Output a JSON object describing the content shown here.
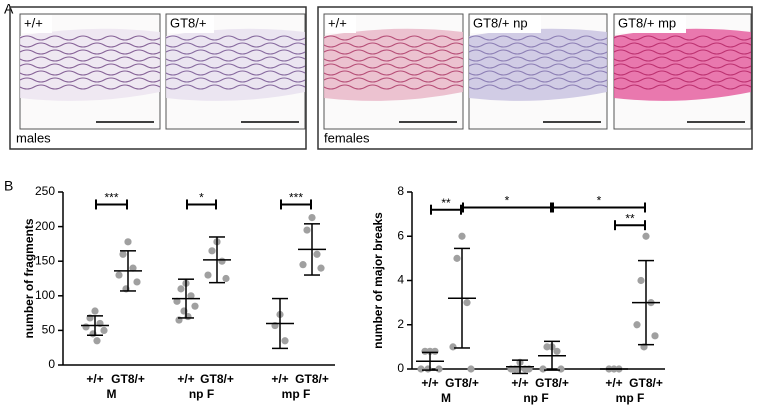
{
  "panel_labels": [
    "A",
    "B"
  ],
  "panel_a": [
    {
      "caption": "males",
      "images": [
        "+/+",
        "GT8/+"
      ]
    },
    {
      "caption": "females",
      "images": [
        "+/+",
        "GT8/+ np",
        "GT8/+ mp"
      ]
    }
  ],
  "chart_data": [
    {
      "type": "dot",
      "ylabel": "number of fragments",
      "categories": [
        "+/+",
        "GT8/+",
        "+/+",
        "GT8/+",
        "+/+",
        "GT8/+"
      ],
      "groups": [
        "M",
        "np F",
        "mp F"
      ],
      "points": [
        [
          78,
          68,
          60,
          55,
          50,
          45,
          35
        ],
        [
          178,
          160,
          140,
          130,
          120,
          110
        ],
        [
          118,
          110,
          100,
          92,
          85,
          78,
          70,
          65
        ],
        [
          178,
          165,
          150,
          130,
          125
        ],
        [
          73,
          57,
          35
        ],
        [
          213,
          195,
          160,
          145,
          140
        ]
      ],
      "means": [
        57,
        136,
        96,
        152,
        60,
        167
      ],
      "sd": [
        14,
        29,
        28,
        33,
        36,
        37
      ],
      "point_color": "#a0a0a0",
      "ylim": [
        0,
        250
      ],
      "yticks": [
        0,
        50,
        100,
        150,
        200,
        250
      ],
      "annotations": [
        {
          "label": "***",
          "pair": [
            0,
            1
          ],
          "y": 232
        },
        {
          "label": "*",
          "pair": [
            2,
            3
          ],
          "y": 232
        },
        {
          "label": "***",
          "pair": [
            4,
            5
          ],
          "y": 232
        }
      ]
    },
    {
      "type": "dot",
      "ylabel": "number of major breaks",
      "categories": [
        "+/+",
        "GT8/+",
        "+/+",
        "GT8/+",
        "+/+",
        "GT8/+"
      ],
      "groups": [
        "M",
        "np F",
        "mp F"
      ],
      "points": [
        [
          0.8,
          0.8,
          0.8,
          0,
          0,
          0
        ],
        [
          6,
          5,
          3,
          1,
          0
        ],
        [
          0.3,
          0,
          0,
          0,
          0,
          0
        ],
        [
          1,
          1,
          0.8,
          0,
          0
        ],
        [
          0,
          0,
          0
        ],
        [
          6,
          4,
          3,
          2,
          1.5,
          1
        ]
      ],
      "means": [
        0.35,
        3.2,
        0.1,
        0.6,
        0,
        3
      ],
      "sd": [
        0.4,
        2.25,
        0.3,
        0.65,
        0,
        1.9
      ],
      "point_color": "#a0a0a0",
      "ylim": [
        0,
        8
      ],
      "yticks": [
        0,
        2,
        4,
        6,
        8
      ],
      "annotations": [
        {
          "label": "**",
          "pair": [
            0,
            1
          ],
          "y": 7.2
        },
        {
          "label": "*",
          "pair": [
            1,
            3
          ],
          "y": 7.3
        },
        {
          "label": "*",
          "pair": [
            3,
            5
          ],
          "y": 7.3
        },
        {
          "label": "**",
          "pair": [
            4,
            5
          ],
          "y": 6.5
        }
      ]
    }
  ]
}
